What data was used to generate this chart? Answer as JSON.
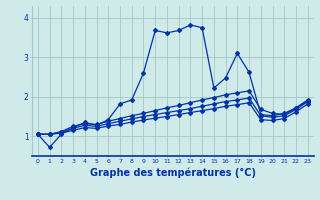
{
  "background_color": "#d0eaea",
  "grid_color": "#a0c8c8",
  "line_color": "#0033aa",
  "xlabel": "Graphe des températures (°C)",
  "xlabel_fontsize": 7,
  "xlim": [
    -0.5,
    23.5
  ],
  "ylim": [
    0.5,
    4.3
  ],
  "yticks": [
    1,
    2,
    3,
    4
  ],
  "xticks": [
    0,
    1,
    2,
    3,
    4,
    5,
    6,
    7,
    8,
    9,
    10,
    11,
    12,
    13,
    14,
    15,
    16,
    17,
    18,
    19,
    20,
    21,
    22,
    23
  ],
  "series1_x": [
    0,
    1,
    2,
    3,
    4,
    5,
    6,
    7,
    8,
    9,
    10,
    11,
    12,
    13,
    14,
    15,
    16,
    17,
    18,
    19,
    20,
    21,
    22,
    23
  ],
  "series1_y": [
    1.05,
    0.72,
    1.05,
    1.22,
    1.35,
    1.28,
    1.42,
    1.82,
    1.92,
    2.6,
    3.68,
    3.62,
    3.68,
    3.82,
    3.75,
    2.22,
    2.48,
    3.1,
    2.62,
    1.55,
    1.52,
    1.58,
    1.72,
    1.9
  ],
  "series2_x": [
    0,
    1,
    2,
    3,
    4,
    5,
    6,
    7,
    8,
    9,
    10,
    11,
    12,
    13,
    14,
    15,
    16,
    17,
    18,
    19,
    20,
    21,
    22,
    23
  ],
  "series2_y": [
    1.05,
    1.05,
    1.12,
    1.25,
    1.32,
    1.3,
    1.38,
    1.45,
    1.52,
    1.58,
    1.65,
    1.72,
    1.78,
    1.85,
    1.92,
    1.98,
    2.05,
    2.1,
    2.15,
    1.68,
    1.58,
    1.55,
    1.72,
    1.92
  ],
  "series3_x": [
    0,
    1,
    2,
    3,
    4,
    5,
    6,
    7,
    8,
    9,
    10,
    11,
    12,
    13,
    14,
    15,
    16,
    17,
    18,
    19,
    20,
    21,
    22,
    23
  ],
  "series3_y": [
    1.05,
    1.05,
    1.1,
    1.2,
    1.28,
    1.25,
    1.32,
    1.38,
    1.44,
    1.5,
    1.55,
    1.6,
    1.65,
    1.7,
    1.76,
    1.82,
    1.88,
    1.92,
    1.97,
    1.52,
    1.48,
    1.52,
    1.68,
    1.88
  ],
  "series4_x": [
    0,
    1,
    2,
    3,
    4,
    5,
    6,
    7,
    8,
    9,
    10,
    11,
    12,
    13,
    14,
    15,
    16,
    17,
    18,
    19,
    20,
    21,
    22,
    23
  ],
  "series4_y": [
    1.05,
    1.05,
    1.08,
    1.15,
    1.22,
    1.2,
    1.26,
    1.3,
    1.36,
    1.41,
    1.46,
    1.5,
    1.55,
    1.6,
    1.65,
    1.7,
    1.76,
    1.8,
    1.85,
    1.42,
    1.4,
    1.45,
    1.62,
    1.82
  ]
}
